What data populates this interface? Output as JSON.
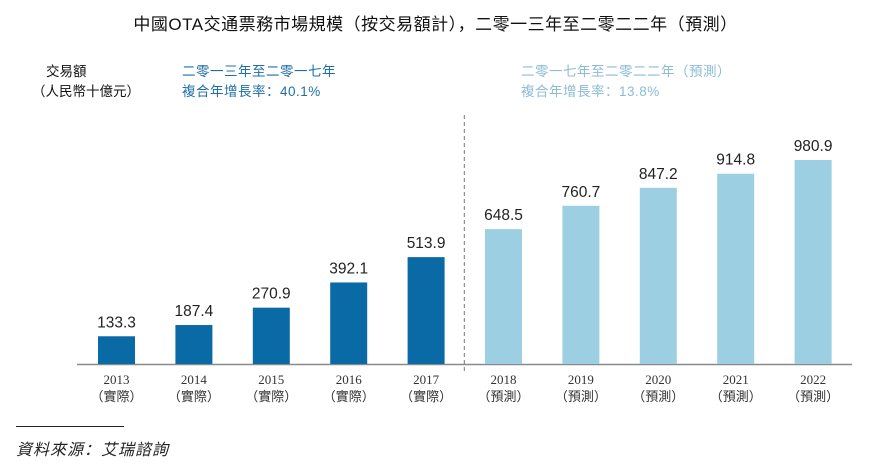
{
  "chart_data": {
    "type": "bar",
    "title": "中國OTA交通票務市場規模（按交易額計），二零一三年至二零二二年（預測）",
    "ylabel": [
      "交易額",
      "（人民幣十億元）"
    ],
    "xlabel": "",
    "categories": [
      "2013",
      "2014",
      "2015",
      "2016",
      "2017",
      "2018",
      "2019",
      "2020",
      "2021",
      "2022"
    ],
    "category_notes": [
      "（實際）",
      "（實際）",
      "（實際）",
      "（實際）",
      "（實際）",
      "（預測）",
      "（預測）",
      "（預測）",
      "（預測）",
      "（預測）"
    ],
    "values": [
      133.3,
      187.4,
      270.9,
      392.1,
      513.9,
      648.5,
      760.7,
      847.2,
      914.8,
      980.9
    ],
    "value_labels": [
      "133.3",
      "187.4",
      "270.9",
      "392.1",
      "513.9",
      "648.5",
      "760.7",
      "847.2",
      "914.8",
      "980.9"
    ],
    "series": [
      {
        "name": "實際",
        "color": "#0a6aa6",
        "range": [
          "2013",
          "2017"
        ]
      },
      {
        "name": "預測",
        "color": "#9ccfe2",
        "range": [
          "2018",
          "2022"
        ]
      }
    ],
    "ylim": [
      0,
      1000
    ],
    "grid": false,
    "divider_between": [
      "2017",
      "2018"
    ],
    "annotations": [
      {
        "period": "二零一三年至二零一七年",
        "cagr": "複合年增長率：40.1%",
        "color": "#1f6ea5"
      },
      {
        "period": "二零一七年至二零二二年（預測）",
        "cagr": "複合年增長率：13.8%",
        "color": "#8cbbd6"
      }
    ],
    "source": "資料來源：艾瑞諮詢"
  }
}
